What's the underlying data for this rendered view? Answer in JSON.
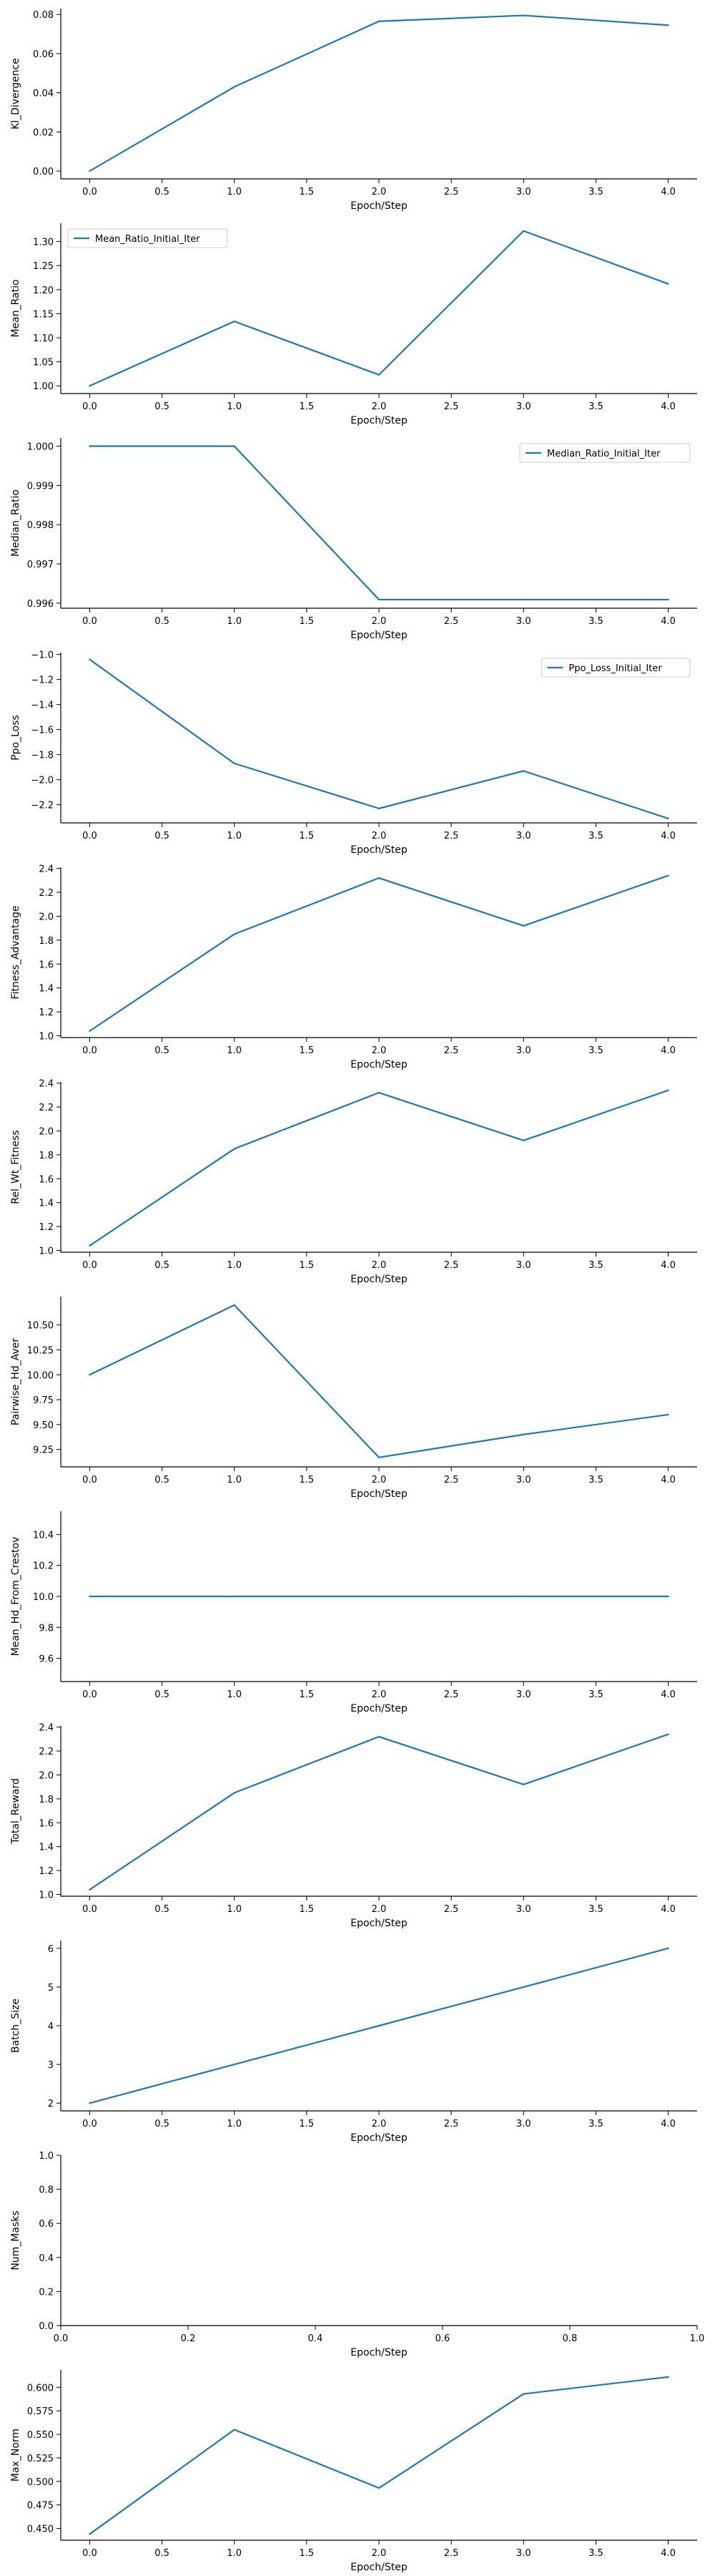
{
  "style": {
    "line_color": "#1f77b4",
    "axis_color": "#000000",
    "background": "#ffffff"
  },
  "chart_data": [
    {
      "type": "line",
      "xlabel": "Epoch/Step",
      "ylabel": "Kl_Divergence",
      "x": [
        0,
        1,
        2,
        3,
        4
      ],
      "xticks": [
        "0.0",
        "0.5",
        "1.0",
        "1.5",
        "2.0",
        "2.5",
        "3.0",
        "3.5",
        "4.0"
      ],
      "xlim": [
        -0.2,
        4.2
      ],
      "yticks": [
        "0.00",
        "0.02",
        "0.04",
        "0.06",
        "0.08"
      ],
      "ylim": [
        -0.004,
        0.083
      ],
      "series": [
        {
          "values": [
            0.0,
            0.043,
            0.0765,
            0.0795,
            0.0745
          ]
        }
      ],
      "legend": null
    },
    {
      "type": "line",
      "xlabel": "Epoch/Step",
      "ylabel": "Mean_Ratio",
      "x": [
        0,
        1,
        2,
        3,
        4
      ],
      "xticks": [
        "0.0",
        "0.5",
        "1.0",
        "1.5",
        "2.0",
        "2.5",
        "3.0",
        "3.5",
        "4.0"
      ],
      "xlim": [
        -0.2,
        4.2
      ],
      "yticks": [
        "1.00",
        "1.05",
        "1.10",
        "1.15",
        "1.20",
        "1.25",
        "1.30"
      ],
      "ylim": [
        0.984,
        1.338
      ],
      "series": [
        {
          "name": "Mean_Ratio_Initial_Iter",
          "values": [
            1.0,
            1.134,
            1.023,
            1.322,
            1.212
          ]
        }
      ],
      "legend": "upper-left"
    },
    {
      "type": "line",
      "xlabel": "Epoch/Step",
      "ylabel": "Median_Ratio",
      "x": [
        0,
        1,
        2,
        3,
        4
      ],
      "xticks": [
        "0.0",
        "0.5",
        "1.0",
        "1.5",
        "2.0",
        "2.5",
        "3.0",
        "3.5",
        "4.0"
      ],
      "xlim": [
        -0.2,
        4.2
      ],
      "yticks": [
        "0.996",
        "0.997",
        "0.998",
        "0.999",
        "1.000"
      ],
      "ylim": [
        0.99587,
        1.00021
      ],
      "series": [
        {
          "name": "Median_Ratio_Initial_Iter",
          "values": [
            1.0,
            1.0,
            0.99609,
            0.99609,
            0.99609
          ]
        }
      ],
      "legend": "upper-right"
    },
    {
      "type": "line",
      "xlabel": "Epoch/Step",
      "ylabel": "Ppo_Loss",
      "x": [
        0,
        1,
        2,
        3,
        4
      ],
      "xticks": [
        "0.0",
        "0.5",
        "1.0",
        "1.5",
        "2.0",
        "2.5",
        "3.0",
        "3.5",
        "4.0"
      ],
      "xlim": [
        -0.2,
        4.2
      ],
      "yticks": [
        "−2.2",
        "−2.0",
        "−1.8",
        "−1.6",
        "−1.4",
        "−1.2",
        "−1.0"
      ],
      "ylim": [
        -2.345,
        -0.985
      ],
      "series": [
        {
          "name": "Ppo_Loss_Initial_Iter",
          "values": [
            -1.04,
            -1.87,
            -2.23,
            -1.93,
            -2.31
          ]
        }
      ],
      "legend": "upper-right"
    },
    {
      "type": "line",
      "xlabel": "Epoch/Step",
      "ylabel": "Fitness_Advantage",
      "x": [
        0,
        1,
        2,
        3,
        4
      ],
      "xticks": [
        "0.0",
        "0.5",
        "1.0",
        "1.5",
        "2.0",
        "2.5",
        "3.0",
        "3.5",
        "4.0"
      ],
      "xlim": [
        -0.2,
        4.2
      ],
      "yticks": [
        "1.0",
        "1.2",
        "1.4",
        "1.6",
        "1.8",
        "2.0",
        "2.2",
        "2.4"
      ],
      "ylim": [
        0.985,
        2.41
      ],
      "series": [
        {
          "values": [
            1.04,
            1.85,
            2.32,
            1.92,
            2.34
          ]
        }
      ],
      "legend": null
    },
    {
      "type": "line",
      "xlabel": "Epoch/Step",
      "ylabel": "Rel_Wt_Fitness",
      "x": [
        0,
        1,
        2,
        3,
        4
      ],
      "xticks": [
        "0.0",
        "0.5",
        "1.0",
        "1.5",
        "2.0",
        "2.5",
        "3.0",
        "3.5",
        "4.0"
      ],
      "xlim": [
        -0.2,
        4.2
      ],
      "yticks": [
        "1.0",
        "1.2",
        "1.4",
        "1.6",
        "1.8",
        "2.0",
        "2.2",
        "2.4"
      ],
      "ylim": [
        0.985,
        2.41
      ],
      "series": [
        {
          "values": [
            1.04,
            1.85,
            2.32,
            1.92,
            2.34
          ]
        }
      ],
      "legend": null
    },
    {
      "type": "line",
      "xlabel": "Epoch/Step",
      "ylabel": "Pairwise_Hd_Aver",
      "x": [
        0,
        1,
        2,
        3,
        4
      ],
      "xticks": [
        "0.0",
        "0.5",
        "1.0",
        "1.5",
        "2.0",
        "2.5",
        "3.0",
        "3.5",
        "4.0"
      ],
      "xlim": [
        -0.2,
        4.2
      ],
      "yticks": [
        "9.25",
        "9.50",
        "9.75",
        "10.00",
        "10.25",
        "10.50"
      ],
      "ylim": [
        9.075,
        10.785
      ],
      "series": [
        {
          "values": [
            10.0,
            10.7,
            9.17,
            9.4,
            9.6
          ]
        }
      ],
      "legend": null
    },
    {
      "type": "line",
      "xlabel": "Epoch/Step",
      "ylabel": "Mean_Hd_From_Crestov",
      "x": [
        0,
        1,
        2,
        3,
        4
      ],
      "xticks": [
        "0.0",
        "0.5",
        "1.0",
        "1.5",
        "2.0",
        "2.5",
        "3.0",
        "3.5",
        "4.0"
      ],
      "xlim": [
        -0.2,
        4.2
      ],
      "yticks": [
        "9.6",
        "9.8",
        "10.0",
        "10.2",
        "10.4"
      ],
      "ylim": [
        9.45,
        10.55
      ],
      "series": [
        {
          "values": [
            10.0,
            10.0,
            10.0,
            10.0,
            10.0
          ]
        }
      ],
      "legend": null
    },
    {
      "type": "line",
      "xlabel": "Epoch/Step",
      "ylabel": "Total_Reward",
      "x": [
        0,
        1,
        2,
        3,
        4
      ],
      "xticks": [
        "0.0",
        "0.5",
        "1.0",
        "1.5",
        "2.0",
        "2.5",
        "3.0",
        "3.5",
        "4.0"
      ],
      "xlim": [
        -0.2,
        4.2
      ],
      "yticks": [
        "1.0",
        "1.2",
        "1.4",
        "1.6",
        "1.8",
        "2.0",
        "2.2",
        "2.4"
      ],
      "ylim": [
        0.985,
        2.41
      ],
      "series": [
        {
          "values": [
            1.04,
            1.85,
            2.32,
            1.92,
            2.34
          ]
        }
      ],
      "legend": null
    },
    {
      "type": "line",
      "xlabel": "Epoch/Step",
      "ylabel": "Batch_Size",
      "x": [
        0,
        1,
        2,
        3,
        4
      ],
      "xticks": [
        "0.0",
        "0.5",
        "1.0",
        "1.5",
        "2.0",
        "2.5",
        "3.0",
        "3.5",
        "4.0"
      ],
      "xlim": [
        -0.2,
        4.2
      ],
      "yticks": [
        "2",
        "3",
        "4",
        "5",
        "6"
      ],
      "ylim": [
        1.8,
        6.2
      ],
      "series": [
        {
          "values": [
            2,
            3,
            4,
            5,
            6
          ]
        }
      ],
      "legend": null
    },
    {
      "type": "line",
      "xlabel": "Epoch/Step",
      "ylabel": "Num_Masks",
      "x": [],
      "xticks": [
        "0.0",
        "0.2",
        "0.4",
        "0.6",
        "0.8",
        "1.0"
      ],
      "xlim": [
        0,
        1
      ],
      "yticks": [
        "0.0",
        "0.2",
        "0.4",
        "0.6",
        "0.8",
        "1.0"
      ],
      "ylim": [
        0,
        1
      ],
      "series": [],
      "legend": null
    },
    {
      "type": "line",
      "xlabel": "Epoch/Step",
      "ylabel": "Max_Norm",
      "x": [
        0,
        1,
        2,
        3,
        4
      ],
      "xticks": [
        "0.0",
        "0.5",
        "1.0",
        "1.5",
        "2.0",
        "2.5",
        "3.0",
        "3.5",
        "4.0"
      ],
      "xlim": [
        -0.2,
        4.2
      ],
      "yticks": [
        "0.450",
        "0.475",
        "0.500",
        "0.525",
        "0.550",
        "0.575",
        "0.600"
      ],
      "ylim": [
        0.4375,
        0.6185
      ],
      "series": [
        {
          "values": [
            0.444,
            0.555,
            0.493,
            0.593,
            0.611
          ]
        }
      ],
      "legend": null
    }
  ]
}
